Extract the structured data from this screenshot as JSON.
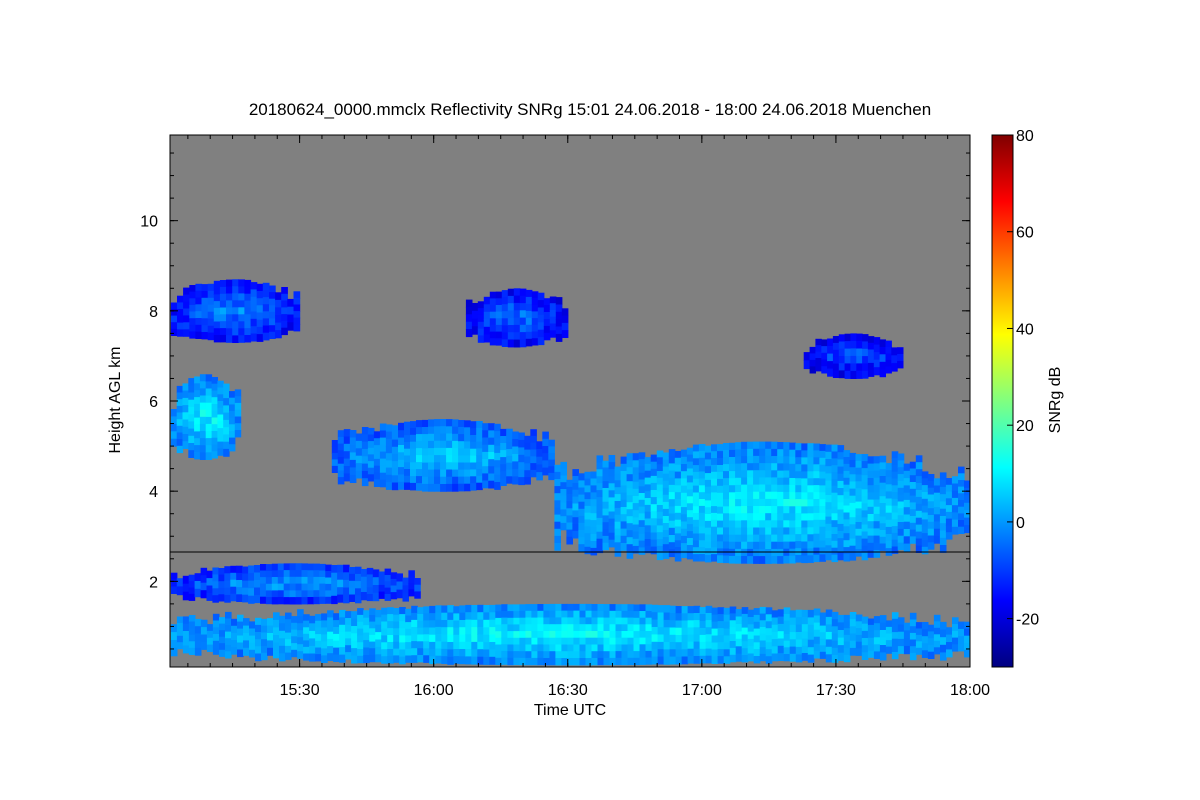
{
  "chart_data": {
    "type": "heatmap",
    "title": "20180624_0000.mmclx Reflectivity SNRg   15:01 24.06.2018 - 18:00 24.06.2018 Muenchen",
    "xlabel": "Time UTC",
    "ylabel": "Height AGL km",
    "colorbar_label": "SNRg dB",
    "x_range_hours": [
      15.0167,
      18.0
    ],
    "y_range_km": [
      0.1,
      11.9
    ],
    "x_ticks": [
      {
        "value": 15.5,
        "label": "15:30"
      },
      {
        "value": 16.0,
        "label": "16:00"
      },
      {
        "value": 16.5,
        "label": "16:30"
      },
      {
        "value": 17.0,
        "label": "17:00"
      },
      {
        "value": 17.5,
        "label": "17:30"
      },
      {
        "value": 18.0,
        "label": "18:00"
      }
    ],
    "y_ticks": [
      {
        "value": 2,
        "label": "2"
      },
      {
        "value": 4,
        "label": "4"
      },
      {
        "value": 6,
        "label": "6"
      },
      {
        "value": 8,
        "label": "8"
      },
      {
        "value": 10,
        "label": "10"
      }
    ],
    "colorbar_range": [
      -30,
      80
    ],
    "colorbar_ticks": [
      {
        "value": -20,
        "label": "-20"
      },
      {
        "value": 0,
        "label": "0"
      },
      {
        "value": 20,
        "label": "20"
      },
      {
        "value": 40,
        "label": "40"
      },
      {
        "value": 60,
        "label": "60"
      },
      {
        "value": 80,
        "label": "80"
      }
    ],
    "colormap": [
      "#000080",
      "#0000ff",
      "#0080ff",
      "#00ffff",
      "#80ff80",
      "#ffff00",
      "#ff8000",
      "#ff0000",
      "#800000"
    ],
    "background_color": "#808080",
    "reference_line_height_km": 2.65,
    "echo_regions": [
      {
        "name": "boundary-layer",
        "t_start": 15.02,
        "t_end": 18.0,
        "h_bottom": 0.15,
        "h_top": 1.5,
        "snr_db": 5
      },
      {
        "name": "low-layer-2km",
        "t_start": 15.02,
        "t_end": 15.95,
        "h_bottom": 1.5,
        "h_top": 2.4,
        "snr_db": -5
      },
      {
        "name": "mid-cloud-west",
        "t_start": 15.02,
        "t_end": 15.28,
        "h_bottom": 4.7,
        "h_top": 6.6,
        "snr_db": 5
      },
      {
        "name": "mid-cloud-main",
        "t_start": 15.62,
        "t_end": 16.45,
        "h_bottom": 4.0,
        "h_top": 5.6,
        "snr_db": 0
      },
      {
        "name": "mid-cloud-east",
        "t_start": 16.45,
        "t_end": 18.0,
        "h_bottom": 2.4,
        "h_top": 5.1,
        "snr_db": 4
      },
      {
        "name": "upper-cloud-west",
        "t_start": 15.02,
        "t_end": 15.5,
        "h_bottom": 7.3,
        "h_top": 8.7,
        "snr_db": -8
      },
      {
        "name": "upper-cloud-center",
        "t_start": 16.12,
        "t_end": 16.5,
        "h_bottom": 7.2,
        "h_top": 8.5,
        "snr_db": -10
      },
      {
        "name": "upper-cloud-east",
        "t_start": 17.38,
        "t_end": 17.75,
        "h_bottom": 6.5,
        "h_top": 7.5,
        "snr_db": -12
      }
    ]
  }
}
